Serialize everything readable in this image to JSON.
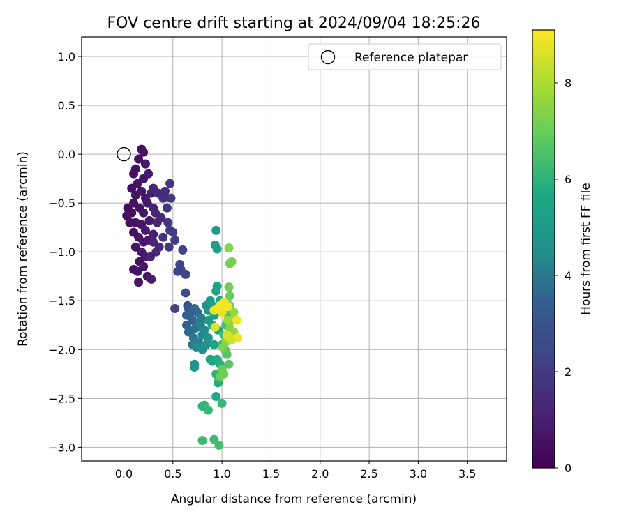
{
  "chart_data": {
    "type": "scatter",
    "title": "FOV centre drift starting at 2024/09/04 18:25:26",
    "xlabel": "Angular distance from reference (arcmin)",
    "ylabel": "Rotation from reference (arcmin)",
    "xlim": [
      -0.43,
      3.9
    ],
    "ylim": [
      -3.14,
      1.2
    ],
    "xticks": [
      0.0,
      0.5,
      1.0,
      1.5,
      2.0,
      2.5,
      3.0,
      3.5
    ],
    "xtick_labels": [
      "0.0",
      "0.5",
      "1.0",
      "1.5",
      "2.0",
      "2.5",
      "3.0",
      "3.5"
    ],
    "yticks": [
      1.0,
      0.5,
      0.0,
      -0.5,
      -1.0,
      -1.5,
      -2.0,
      -2.5,
      -3.0
    ],
    "ytick_labels": [
      "1.0",
      "0.5",
      "0.0",
      "−0.5",
      "−1.0",
      "−1.5",
      "−2.0",
      "−2.5",
      "−3.0"
    ],
    "grid": true,
    "legend": {
      "placement": "top-right",
      "entries": [
        "Reference platepar"
      ]
    },
    "reference_point": {
      "x": 0.0,
      "y": 0.0
    },
    "colorbar": {
      "label": "Hours from first FF file",
      "min": 0,
      "max": 9.1,
      "ticks": [
        0,
        2,
        4,
        6,
        8
      ],
      "tick_labels": [
        "0",
        "2",
        "4",
        "6",
        "8"
      ],
      "colormap": "viridis"
    },
    "points": [
      {
        "x": 0.12,
        "y": -0.15,
        "h": 0.6
      },
      {
        "x": 0.18,
        "y": 0.05,
        "h": 0.5
      },
      {
        "x": 0.2,
        "y": 0.02,
        "h": 0.6
      },
      {
        "x": 0.15,
        "y": -0.05,
        "h": 0.5
      },
      {
        "x": 0.22,
        "y": -0.1,
        "h": 0.7
      },
      {
        "x": 0.1,
        "y": -0.2,
        "h": 0.5
      },
      {
        "x": 0.14,
        "y": -0.3,
        "h": 0.6
      },
      {
        "x": 0.2,
        "y": -0.25,
        "h": 0.7
      },
      {
        "x": 0.25,
        "y": -0.2,
        "h": 0.8
      },
      {
        "x": 0.08,
        "y": -0.35,
        "h": 0.5
      },
      {
        "x": 0.12,
        "y": -0.42,
        "h": 0.6
      },
      {
        "x": 0.18,
        "y": -0.38,
        "h": 0.7
      },
      {
        "x": 0.22,
        "y": -0.45,
        "h": 0.8
      },
      {
        "x": 0.28,
        "y": -0.4,
        "h": 1.0
      },
      {
        "x": 0.1,
        "y": -0.5,
        "h": 0.5
      },
      {
        "x": 0.16,
        "y": -0.55,
        "h": 0.6
      },
      {
        "x": 0.2,
        "y": -0.6,
        "h": 0.7
      },
      {
        "x": 0.24,
        "y": -0.5,
        "h": 0.8
      },
      {
        "x": 0.3,
        "y": -0.55,
        "h": 1.1
      },
      {
        "x": 0.03,
        "y": -0.63,
        "h": 0.4
      },
      {
        "x": 0.08,
        "y": -0.6,
        "h": 0.5
      },
      {
        "x": 0.12,
        "y": -0.7,
        "h": 0.6
      },
      {
        "x": 0.18,
        "y": -0.72,
        "h": 0.7
      },
      {
        "x": 0.22,
        "y": -0.78,
        "h": 0.8
      },
      {
        "x": 0.26,
        "y": -0.68,
        "h": 0.9
      },
      {
        "x": 0.1,
        "y": -0.8,
        "h": 0.5
      },
      {
        "x": 0.15,
        "y": -0.85,
        "h": 0.6
      },
      {
        "x": 0.2,
        "y": -0.9,
        "h": 0.7
      },
      {
        "x": 0.25,
        "y": -0.88,
        "h": 0.8
      },
      {
        "x": 0.3,
        "y": -0.82,
        "h": 1.0
      },
      {
        "x": 0.12,
        "y": -0.95,
        "h": 0.6
      },
      {
        "x": 0.18,
        "y": -1.0,
        "h": 0.7
      },
      {
        "x": 0.22,
        "y": -1.05,
        "h": 0.8
      },
      {
        "x": 0.16,
        "y": -1.1,
        "h": 0.6
      },
      {
        "x": 0.2,
        "y": -1.15,
        "h": 0.7
      },
      {
        "x": 0.1,
        "y": -1.18,
        "h": 0.5
      },
      {
        "x": 0.14,
        "y": -1.2,
        "h": 0.6
      },
      {
        "x": 0.24,
        "y": -1.25,
        "h": 0.8
      },
      {
        "x": 0.28,
        "y": -1.28,
        "h": 0.9
      },
      {
        "x": 0.15,
        "y": -1.31,
        "h": 0.6
      },
      {
        "x": 0.06,
        "y": -0.7,
        "h": 0.5
      },
      {
        "x": 0.04,
        "y": -0.55,
        "h": 0.4
      },
      {
        "x": 0.32,
        "y": -0.6,
        "h": 1.1
      },
      {
        "x": 0.34,
        "y": -0.7,
        "h": 1.2
      },
      {
        "x": 0.38,
        "y": -0.65,
        "h": 1.3
      },
      {
        "x": 0.3,
        "y": -0.35,
        "h": 1.2
      },
      {
        "x": 0.35,
        "y": -0.4,
        "h": 1.4
      },
      {
        "x": 0.42,
        "y": -0.38,
        "h": 1.5
      },
      {
        "x": 0.4,
        "y": -0.45,
        "h": 1.6
      },
      {
        "x": 0.44,
        "y": -0.55,
        "h": 1.7
      },
      {
        "x": 0.48,
        "y": -0.45,
        "h": 1.8
      },
      {
        "x": 0.45,
        "y": -0.7,
        "h": 1.8
      },
      {
        "x": 0.47,
        "y": -0.78,
        "h": 1.9
      },
      {
        "x": 0.5,
        "y": -0.8,
        "h": 2.0
      },
      {
        "x": 0.4,
        "y": -0.85,
        "h": 1.7
      },
      {
        "x": 0.46,
        "y": -0.95,
        "h": 1.9
      },
      {
        "x": 0.52,
        "y": -0.88,
        "h": 2.1
      },
      {
        "x": 0.36,
        "y": -0.95,
        "h": 1.5
      },
      {
        "x": 0.47,
        "y": -0.3,
        "h": 1.9
      },
      {
        "x": 0.3,
        "y": -0.9,
        "h": 1.2
      },
      {
        "x": 0.33,
        "y": -1.0,
        "h": 1.3
      },
      {
        "x": 0.27,
        "y": -1.05,
        "h": 1.1
      },
      {
        "x": 0.55,
        "y": -1.2,
        "h": 2.2
      },
      {
        "x": 0.58,
        "y": -1.18,
        "h": 2.3
      },
      {
        "x": 0.6,
        "y": -0.98,
        "h": 2.3
      },
      {
        "x": 0.57,
        "y": -1.13,
        "h": 2.4
      },
      {
        "x": 0.63,
        "y": -1.23,
        "h": 2.5
      },
      {
        "x": 0.52,
        "y": -1.58,
        "h": 2.2
      },
      {
        "x": 0.63,
        "y": -1.42,
        "h": 2.7
      },
      {
        "x": 0.65,
        "y": -1.55,
        "h": 3.0
      },
      {
        "x": 0.66,
        "y": -1.58,
        "h": 3.2
      },
      {
        "x": 0.68,
        "y": -1.62,
        "h": 3.3
      },
      {
        "x": 0.64,
        "y": -1.65,
        "h": 3.4
      },
      {
        "x": 0.7,
        "y": -1.7,
        "h": 3.5
      },
      {
        "x": 0.72,
        "y": -1.58,
        "h": 3.6
      },
      {
        "x": 0.75,
        "y": -1.62,
        "h": 3.7
      },
      {
        "x": 0.64,
        "y": -1.75,
        "h": 3.5
      },
      {
        "x": 0.68,
        "y": -1.8,
        "h": 3.8
      },
      {
        "x": 0.73,
        "y": -1.78,
        "h": 3.9
      },
      {
        "x": 0.77,
        "y": -1.72,
        "h": 4.0
      },
      {
        "x": 0.79,
        "y": -1.68,
        "h": 4.1
      },
      {
        "x": 0.66,
        "y": -1.82,
        "h": 3.7
      },
      {
        "x": 0.71,
        "y": -1.88,
        "h": 4.0
      },
      {
        "x": 0.76,
        "y": -1.92,
        "h": 4.2
      },
      {
        "x": 0.8,
        "y": -1.85,
        "h": 4.3
      },
      {
        "x": 0.7,
        "y": -1.95,
        "h": 4.1
      },
      {
        "x": 0.74,
        "y": -1.98,
        "h": 4.4
      },
      {
        "x": 0.8,
        "y": -2.0,
        "h": 4.5
      },
      {
        "x": 0.84,
        "y": -1.95,
        "h": 4.6
      },
      {
        "x": 0.86,
        "y": -1.88,
        "h": 4.7
      },
      {
        "x": 0.72,
        "y": -2.15,
        "h": 4.8
      },
      {
        "x": 0.72,
        "y": -2.18,
        "h": 4.9
      },
      {
        "x": 0.78,
        "y": -1.75,
        "h": 4.2
      },
      {
        "x": 0.82,
        "y": -1.8,
        "h": 4.4
      },
      {
        "x": 0.84,
        "y": -1.55,
        "h": 4.6
      },
      {
        "x": 0.86,
        "y": -1.6,
        "h": 4.8
      },
      {
        "x": 0.88,
        "y": -1.5,
        "h": 5.0
      },
      {
        "x": 0.9,
        "y": -1.55,
        "h": 5.1
      },
      {
        "x": 0.86,
        "y": -1.7,
        "h": 5.0
      },
      {
        "x": 0.9,
        "y": -1.75,
        "h": 5.2
      },
      {
        "x": 0.92,
        "y": -1.65,
        "h": 5.3
      },
      {
        "x": 0.94,
        "y": -1.4,
        "h": 5.4
      },
      {
        "x": 0.95,
        "y": -1.35,
        "h": 5.5
      },
      {
        "x": 0.93,
        "y": -0.93,
        "h": 5.2
      },
      {
        "x": 0.94,
        "y": -0.78,
        "h": 5.0
      },
      {
        "x": 0.95,
        "y": -0.97,
        "h": 5.3
      },
      {
        "x": 0.98,
        "y": -1.5,
        "h": 5.6
      },
      {
        "x": 1.0,
        "y": -1.55,
        "h": 5.7
      },
      {
        "x": 0.96,
        "y": -1.8,
        "h": 5.6
      },
      {
        "x": 0.92,
        "y": -1.95,
        "h": 5.5
      },
      {
        "x": 0.88,
        "y": -2.1,
        "h": 5.4
      },
      {
        "x": 0.9,
        "y": -2.12,
        "h": 5.6
      },
      {
        "x": 0.95,
        "y": -2.1,
        "h": 5.8
      },
      {
        "x": 0.98,
        "y": -2.15,
        "h": 5.9
      },
      {
        "x": 0.94,
        "y": -2.25,
        "h": 6.0
      },
      {
        "x": 0.97,
        "y": -2.3,
        "h": 6.1
      },
      {
        "x": 0.96,
        "y": -2.34,
        "h": 5.8
      },
      {
        "x": 0.94,
        "y": -2.48,
        "h": 5.7
      },
      {
        "x": 1.0,
        "y": -2.55,
        "h": 6.2
      },
      {
        "x": 0.8,
        "y": -2.58,
        "h": 6.0
      },
      {
        "x": 0.82,
        "y": -2.57,
        "h": 6.1
      },
      {
        "x": 0.86,
        "y": -2.62,
        "h": 6.2
      },
      {
        "x": 0.92,
        "y": -2.92,
        "h": 6.3
      },
      {
        "x": 0.8,
        "y": -2.93,
        "h": 6.2
      },
      {
        "x": 0.97,
        "y": -2.98,
        "h": 6.4
      },
      {
        "x": 1.0,
        "y": -1.95,
        "h": 6.2
      },
      {
        "x": 1.02,
        "y": -1.85,
        "h": 6.3
      },
      {
        "x": 1.04,
        "y": -1.75,
        "h": 6.4
      },
      {
        "x": 1.06,
        "y": -1.65,
        "h": 6.5
      },
      {
        "x": 1.03,
        "y": -2.0,
        "h": 6.6
      },
      {
        "x": 1.05,
        "y": -2.05,
        "h": 6.7
      },
      {
        "x": 1.07,
        "y": -2.15,
        "h": 6.8
      },
      {
        "x": 1.0,
        "y": -2.2,
        "h": 6.9
      },
      {
        "x": 0.98,
        "y": -2.28,
        "h": 7.0
      },
      {
        "x": 1.02,
        "y": -2.25,
        "h": 7.1
      },
      {
        "x": 1.08,
        "y": -1.55,
        "h": 7.2
      },
      {
        "x": 1.08,
        "y": -1.45,
        "h": 7.0
      },
      {
        "x": 1.07,
        "y": -1.36,
        "h": 7.1
      },
      {
        "x": 1.1,
        "y": -1.1,
        "h": 7.3
      },
      {
        "x": 1.08,
        "y": -1.12,
        "h": 7.2
      },
      {
        "x": 1.07,
        "y": -0.96,
        "h": 7.4
      },
      {
        "x": 1.1,
        "y": -1.7,
        "h": 7.5
      },
      {
        "x": 1.12,
        "y": -1.62,
        "h": 7.6
      },
      {
        "x": 1.08,
        "y": -1.78,
        "h": 7.4
      },
      {
        "x": 1.12,
        "y": -1.82,
        "h": 7.7
      },
      {
        "x": 1.04,
        "y": -1.92,
        "h": 7.5
      },
      {
        "x": 1.01,
        "y": -1.98,
        "h": 7.3
      },
      {
        "x": 1.06,
        "y": -1.7,
        "h": 7.8
      },
      {
        "x": 0.92,
        "y": -1.6,
        "h": 8.8
      },
      {
        "x": 0.95,
        "y": -1.58,
        "h": 8.9
      },
      {
        "x": 0.98,
        "y": -1.55,
        "h": 9.0
      },
      {
        "x": 1.0,
        "y": -1.62,
        "h": 8.8
      },
      {
        "x": 1.02,
        "y": -1.52,
        "h": 8.9
      },
      {
        "x": 1.06,
        "y": -1.56,
        "h": 9.0
      },
      {
        "x": 0.93,
        "y": -1.77,
        "h": 8.7
      },
      {
        "x": 1.05,
        "y": -1.85,
        "h": 8.6
      },
      {
        "x": 1.08,
        "y": -1.88,
        "h": 8.7
      },
      {
        "x": 1.16,
        "y": -1.88,
        "h": 8.9
      },
      {
        "x": 1.15,
        "y": -1.7,
        "h": 8.9
      },
      {
        "x": 1.1,
        "y": -1.9,
        "h": 8.5
      }
    ]
  }
}
